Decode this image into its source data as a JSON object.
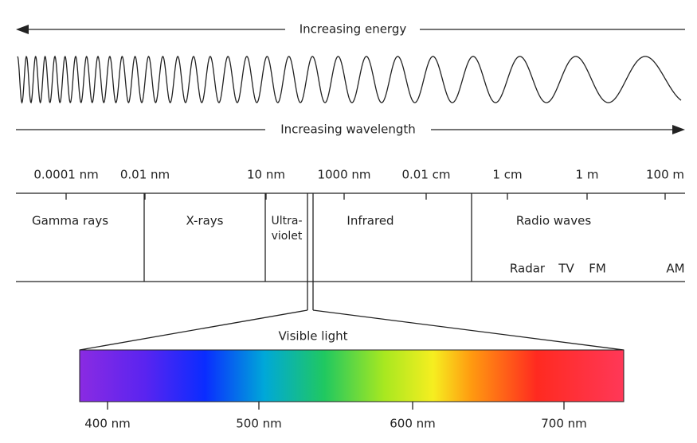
{
  "energy_arrow": {
    "label": "Increasing energy"
  },
  "wavelength_arrow": {
    "label": "Increasing wavelength"
  },
  "scale": {
    "ticks": [
      "0.0001 nm",
      "0.01 nm",
      "10 nm",
      "1000 nm",
      "0.01 cm",
      "1 cm",
      "1 m",
      "100 m"
    ]
  },
  "regions": [
    {
      "label": "Gamma rays"
    },
    {
      "label": "X-rays"
    },
    {
      "lines": [
        "Ultra-",
        "violet"
      ]
    },
    {
      "label": "Infrared"
    },
    {
      "label": "Radio waves"
    }
  ],
  "radio_bands": [
    "Radar",
    "TV",
    "FM",
    "AM"
  ],
  "visible": {
    "label": "Visible light",
    "ticks": [
      "400 nm",
      "500 nm",
      "600 nm",
      "700 nm"
    ]
  }
}
